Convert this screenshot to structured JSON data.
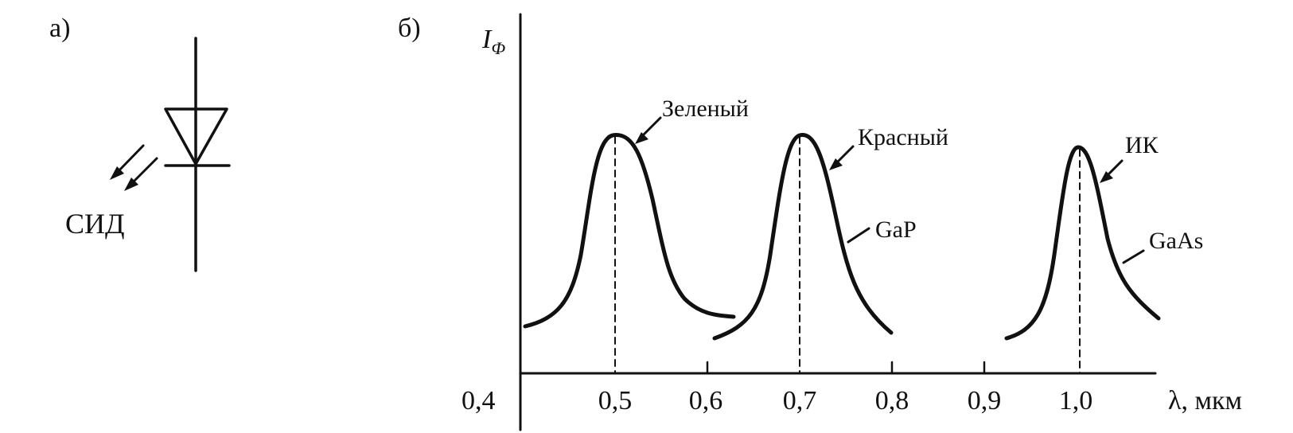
{
  "panel_a": {
    "label": "а)",
    "caption": "СИД"
  },
  "panel_b": {
    "label": "б)",
    "y_axis_symbol": "I",
    "y_axis_subscript": "Ф",
    "x_axis_unit_label": "λ, мкм",
    "x_ticks": [
      "0,4",
      "0,5",
      "0,6",
      "0,7",
      "0,8",
      "0,9",
      "1,0"
    ],
    "annotations": {
      "green": "Зеленый",
      "red": "Красный",
      "gap": "GaP",
      "ir": "ИК",
      "gaas": "GaAs"
    }
  },
  "chart_data": {
    "type": "line",
    "xlabel": "λ, мкм",
    "ylabel": "IФ",
    "xlim": [
      0.4,
      1.08
    ],
    "x_ticks": [
      0.4,
      0.5,
      0.6,
      0.7,
      0.8,
      0.9,
      1.0
    ],
    "peaks": [
      {
        "name": "Зеленый",
        "peak_x": 0.5,
        "relative_height": 1.0
      },
      {
        "name": "Красный",
        "peak_x": 0.7,
        "relative_height": 1.0
      },
      {
        "name": "ИК",
        "peak_x": 1.0,
        "relative_height": 0.95
      }
    ]
  }
}
